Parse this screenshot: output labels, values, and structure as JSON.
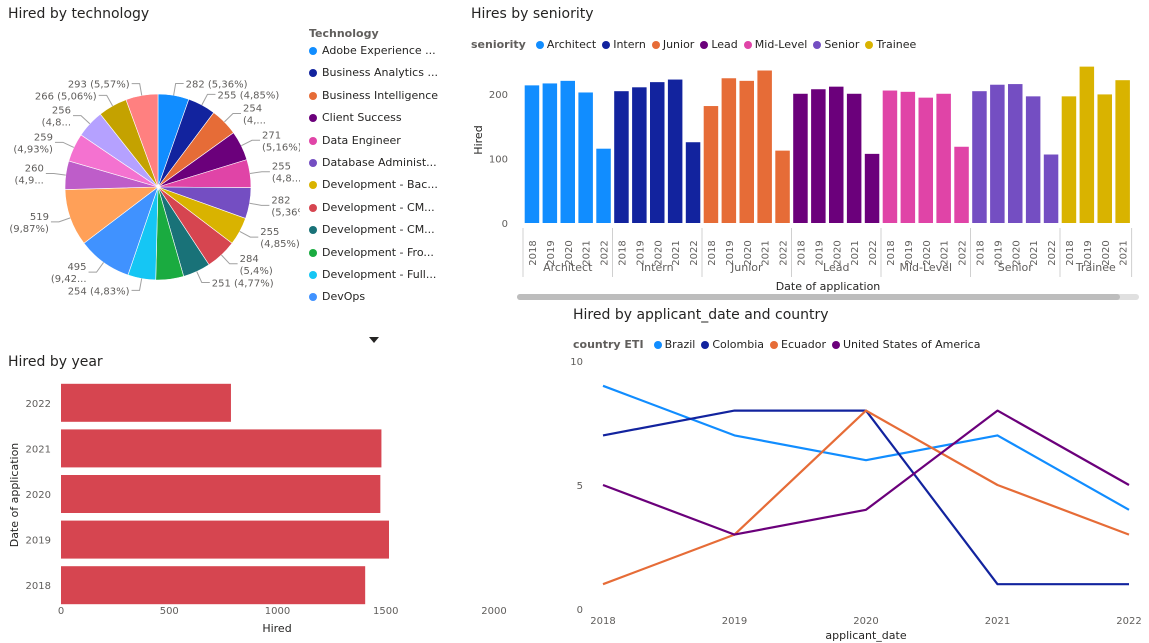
{
  "pie": {
    "title": "Hired by technology",
    "legend_title": "Technology",
    "legend_items": [
      {
        "label": "Adobe Experience ...",
        "color": "#118DFF"
      },
      {
        "label": "Business Analytics ...",
        "color": "#12239E"
      },
      {
        "label": "Business Intelligence",
        "color": "#E66C37"
      },
      {
        "label": "Client Success",
        "color": "#6B007B"
      },
      {
        "label": "Data Engineer",
        "color": "#E044A7"
      },
      {
        "label": "Database Administ...",
        "color": "#744EC2"
      },
      {
        "label": "Development - Bac...",
        "color": "#D9B300"
      },
      {
        "label": "Development - CM...",
        "color": "#D64550"
      },
      {
        "label": "Development - CM...",
        "color": "#197278"
      },
      {
        "label": "Development - Fro...",
        "color": "#1AAB40"
      },
      {
        "label": "Development - Full...",
        "color": "#15C6F4"
      },
      {
        "label": "DevOps",
        "color": "#4092FF"
      }
    ]
  },
  "seniority": {
    "title": "Hires by seniority",
    "legend_title": "seniority",
    "groups": [
      "Architect",
      "Intern",
      "Junior",
      "Lead",
      "Mid-Level",
      "Senior",
      "Trainee"
    ],
    "colors": [
      "#118DFF",
      "#12239E",
      "#E66C37",
      "#6B007B",
      "#E044A7",
      "#744EC2",
      "#D9B300"
    ],
    "y_ticks": [
      "0",
      "100",
      "200"
    ],
    "ylabel": "Hired",
    "xlabel": "Date of application"
  },
  "byyear": {
    "title": "Hired by year",
    "ylabel": "Date of application",
    "xlabel": "Hired",
    "x_ticks": [
      "0",
      "500",
      "1000",
      "1500",
      "2000"
    ],
    "color": "#D64550"
  },
  "linechart": {
    "title": "Hired by applicant_date and country",
    "legend_title": "country ETI",
    "xlabel": "applicant_date",
    "y_ticks": [
      "0",
      "5",
      "10"
    ]
  },
  "chart_data": [
    {
      "type": "pie",
      "title": "Hired by technology",
      "legend_title": "Technology",
      "slices": [
        {
          "category": "Adobe Experience ...",
          "value": 282,
          "label": "282 (5,36%)",
          "color": "#118DFF"
        },
        {
          "category": "Business Analytics ...",
          "value": 255,
          "label": "255 (4,85%)",
          "color": "#12239E"
        },
        {
          "category": "Business Intelligence",
          "value": 254,
          "label": "254 (4,...",
          "color": "#E66C37"
        },
        {
          "category": "Client Success",
          "value": 271,
          "label": "271 (5,16%)",
          "color": "#6B007B"
        },
        {
          "category": "Data Engineer",
          "value": 255,
          "label": "255 (4,8...",
          "color": "#E044A7"
        },
        {
          "category": "Database Administ...",
          "value": 282,
          "label": "282 (5,36%)",
          "color": "#744EC2"
        },
        {
          "category": "Development - Bac...",
          "value": 255,
          "label": "255 (4,85%)",
          "color": "#D9B300"
        },
        {
          "category": "Development - CM...",
          "value": 284,
          "label": "284 (5,4%)",
          "color": "#D64550"
        },
        {
          "category": "Development - CM...",
          "value": 251,
          "label": "251 (4,77%)",
          "color": "#197278"
        },
        {
          "category": "Development - Fro...",
          "value": 254,
          "label": "",
          "color": "#1AAB40"
        },
        {
          "category": "Development - Full...",
          "value": 254,
          "label": "254 (4,83%)",
          "color": "#15C6F4"
        },
        {
          "category": "DevOps",
          "value": 495,
          "label": "495 (9,42...",
          "color": "#4092FF"
        },
        {
          "category": "",
          "value": 519,
          "label": "519 (9,87%)",
          "color": "#FFA058"
        },
        {
          "category": "",
          "value": 260,
          "label": "260 (4,9...",
          "color": "#BE5DC9"
        },
        {
          "category": "",
          "value": 259,
          "label": "259 (4,93%)",
          "color": "#F472D0"
        },
        {
          "category": "",
          "value": 256,
          "label": "256 (4,8...",
          "color": "#B5A1FF"
        },
        {
          "category": "",
          "value": 266,
          "label": "266 (5,06%)",
          "color": "#C4A200"
        },
        {
          "category": "",
          "value": 293,
          "label": "293 (5,57%)",
          "color": "#FF8080"
        }
      ]
    },
    {
      "type": "bar",
      "title": "Hires by seniority",
      "xlabel": "Date of application",
      "ylabel": "Hired",
      "ylim": [
        0,
        260
      ],
      "series": [
        {
          "name": "Architect",
          "categories": [
            "2018",
            "2019",
            "2020",
            "2021",
            "2022"
          ],
          "values": [
            213,
            216,
            220,
            202,
            115
          ]
        },
        {
          "name": "Intern",
          "categories": [
            "2018",
            "2019",
            "2020",
            "2021",
            "2022"
          ],
          "values": [
            204,
            210,
            218,
            222,
            125
          ]
        },
        {
          "name": "Junior",
          "categories": [
            "2018",
            "2019",
            "2020",
            "2021",
            "2022"
          ],
          "values": [
            181,
            224,
            220,
            236,
            112
          ]
        },
        {
          "name": "Lead",
          "categories": [
            "2018",
            "2019",
            "2020",
            "2021",
            "2022"
          ],
          "values": [
            200,
            207,
            211,
            200,
            107
          ]
        },
        {
          "name": "Mid-Level",
          "categories": [
            "2018",
            "2019",
            "2020",
            "2021",
            "2022"
          ],
          "values": [
            205,
            203,
            194,
            200,
            118
          ]
        },
        {
          "name": "Senior",
          "categories": [
            "2018",
            "2019",
            "2020",
            "2021",
            "2022"
          ],
          "values": [
            204,
            214,
            215,
            196,
            106
          ]
        },
        {
          "name": "Trainee",
          "categories": [
            "2018",
            "2019",
            "2020",
            "2021"
          ],
          "values": [
            196,
            242,
            199,
            221
          ]
        }
      ]
    },
    {
      "type": "bar",
      "title": "Hired by year",
      "xlabel": "Hired",
      "ylabel": "Date of application",
      "categories": [
        "2022",
        "2021",
        "2020",
        "2019",
        "2018"
      ],
      "values": [
        785,
        1480,
        1475,
        1515,
        1405
      ],
      "xlim": [
        0,
        2000
      ]
    },
    {
      "type": "line",
      "title": "Hired by applicant_date and country",
      "legend_title": "country ETI",
      "xlabel": "applicant_date",
      "x": [
        "2018",
        "2019",
        "2020",
        "2021",
        "2022"
      ],
      "ylim": [
        0,
        10
      ],
      "series": [
        {
          "name": "Brazil",
          "color": "#118DFF",
          "values": [
            9,
            7,
            6,
            7,
            4
          ]
        },
        {
          "name": "Colombia",
          "color": "#12239E",
          "values": [
            7,
            8,
            8,
            1,
            1
          ]
        },
        {
          "name": "Ecuador",
          "color": "#E66C37",
          "values": [
            1,
            3,
            8,
            5,
            3
          ]
        },
        {
          "name": "United States of America",
          "color": "#6B007B",
          "values": [
            5,
            3,
            4,
            8,
            5
          ]
        }
      ]
    }
  ]
}
